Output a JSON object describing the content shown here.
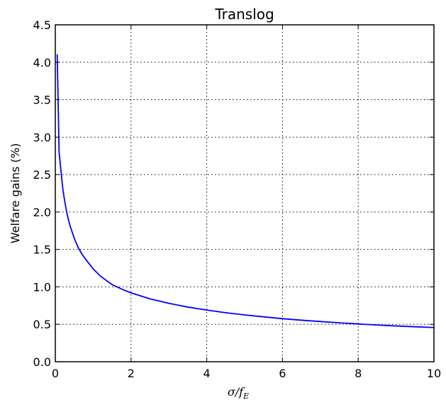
{
  "chart_data": {
    "type": "line",
    "title": "Translog",
    "xlabel": "σ/f_E",
    "xlabel_parts": {
      "main": "σ/f",
      "subscript": "E"
    },
    "ylabel": "Welfare gains (%)",
    "xlim": [
      0,
      10
    ],
    "ylim": [
      0.0,
      4.5
    ],
    "xticks": [
      0,
      2,
      4,
      6,
      8,
      10
    ],
    "xtick_labels": [
      "0",
      "2",
      "4",
      "6",
      "8",
      "10"
    ],
    "yticks": [
      0.0,
      0.5,
      1.0,
      1.5,
      2.0,
      2.5,
      3.0,
      3.5,
      4.0,
      4.5
    ],
    "ytick_labels": [
      "0.0",
      "0.5",
      "1.0",
      "1.5",
      "2.0",
      "2.5",
      "3.0",
      "3.5",
      "4.0",
      "4.5"
    ],
    "grid": true,
    "line_color": "#0000ff",
    "grid_color": "#000000",
    "series": [
      {
        "x": [
          0.05,
          0.1,
          0.15,
          0.2,
          0.25,
          0.3,
          0.35,
          0.4,
          0.5,
          0.6,
          0.7,
          0.8,
          1.0,
          1.2,
          1.5,
          1.8,
          2.0,
          2.5,
          3.0,
          3.5,
          4.0,
          4.5,
          5.0,
          5.5,
          6.0,
          6.5,
          7.0,
          7.5,
          8.0,
          8.5,
          9.0,
          9.5,
          10.0
        ],
        "y": [
          4.1,
          2.8,
          2.55,
          2.3,
          2.14,
          2.0,
          1.89,
          1.8,
          1.65,
          1.53,
          1.44,
          1.37,
          1.24,
          1.14,
          1.03,
          0.96,
          0.92,
          0.84,
          0.78,
          0.73,
          0.69,
          0.655,
          0.625,
          0.6,
          0.575,
          0.555,
          0.537,
          0.52,
          0.505,
          0.49,
          0.478,
          0.467,
          0.457
        ]
      }
    ]
  }
}
